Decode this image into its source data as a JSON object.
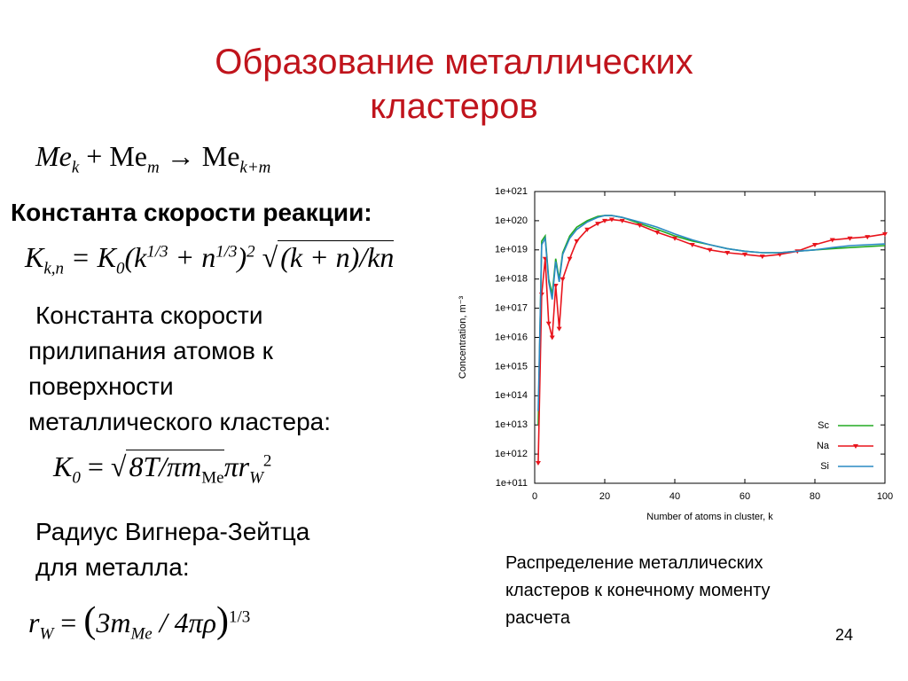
{
  "title": [
    "Образование металлических",
    "кластеров"
  ],
  "formula1": [
    "Me",
    "k",
    " + Me",
    "m",
    " → Me",
    "k+m"
  ],
  "heading": "Константа скорости реакции:",
  "formula2": [
    "K",
    "k,n",
    " = K",
    "0",
    "(k",
    "1/3",
    " + n",
    "1/3",
    ")",
    "2",
    "√",
    "(k + n)/kn"
  ],
  "paragraph": [
    "Константа скорости",
    "прилипания атомов к",
    "поверхности",
    "металлического кластера:"
  ],
  "formula3": [
    "K",
    "0",
    " = ",
    "√",
    "8T/πm",
    "Me",
    "πr",
    "W",
    "2"
  ],
  "radius_text": [
    "Радиус Вигнера-Зейтца",
    "для металла:"
  ],
  "formula4": [
    "r",
    "W",
    " = ",
    "(",
    "3m",
    "Me",
    " / 4πρ",
    ")",
    "1/3"
  ],
  "caption": [
    "Распределение металлических",
    "кластеров к конечному моменту",
    "расчета"
  ],
  "page_number": "24",
  "chart_data": {
    "type": "line",
    "log_y": true,
    "xlabel": "Number of atoms in cluster, k",
    "ylabel": "Concentration, m⁻³",
    "x": [
      1,
      2,
      3,
      4,
      5,
      6,
      7,
      8,
      10,
      12,
      15,
      18,
      20,
      22,
      25,
      30,
      35,
      40,
      45,
      50,
      55,
      60,
      65,
      70,
      75,
      80,
      85,
      90,
      95,
      100
    ],
    "xlim": [
      0,
      100
    ],
    "xticks": [
      0,
      20,
      40,
      60,
      80,
      100
    ],
    "ylim": [
      100000000000.0,
      1e+21
    ],
    "yticks": [
      {
        "value": 100000000000.0,
        "label": "1e+011"
      },
      {
        "value": 1000000000000.0,
        "label": "1e+012"
      },
      {
        "value": 10000000000000.0,
        "label": "1e+013"
      },
      {
        "value": 100000000000000.0,
        "label": "1e+014"
      },
      {
        "value": 1000000000000000.0,
        "label": "1e+015"
      },
      {
        "value": 1e+16,
        "label": "1e+016"
      },
      {
        "value": 1e+17,
        "label": "1e+017"
      },
      {
        "value": 1e+18,
        "label": "1e+018"
      },
      {
        "value": 1e+19,
        "label": "1e+019"
      },
      {
        "value": 1e+20,
        "label": "1e+020"
      },
      {
        "value": 1e+21,
        "label": "1e+021"
      }
    ],
    "legend": "bottom-right",
    "series": [
      {
        "name": "Sc",
        "color": "#22aa22",
        "marker": false,
        "values": [
          10000000000000.0,
          2e+19,
          3e+19,
          1e+18,
          3e+17,
          5e+18,
          1e+18,
          8e+18,
          3e+19,
          6e+19,
          1e+20,
          1.4e+20,
          1.5e+20,
          1.5e+20,
          1.3e+20,
          8e+19,
          5e+19,
          3e+19,
          2e+19,
          1.5e+19,
          1.1e+19,
          9e+18,
          8e+18,
          8e+18,
          9e+18,
          1e+19,
          1.1e+19,
          1.2e+19,
          1.3e+19,
          1.4e+19
        ]
      },
      {
        "name": "Na",
        "color": "#e8141c",
        "marker": true,
        "values": [
          500000000000.0,
          3e+17,
          5e+18,
          3e+16,
          1e+16,
          6e+17,
          2e+16,
          1e+18,
          5e+18,
          2e+19,
          5e+19,
          8e+19,
          1e+20,
          1.1e+20,
          1e+20,
          7e+19,
          4e+19,
          2.5e+19,
          1.5e+19,
          1e+19,
          8e+18,
          7e+18,
          6e+18,
          7e+18,
          9e+18,
          1.5e+19,
          2.2e+19,
          2.5e+19,
          2.8e+19,
          3.5e+19
        ]
      },
      {
        "name": "Si",
        "color": "#2a8ac4",
        "marker": false,
        "values": [
          30000000000000.0,
          1.5e+19,
          2.5e+19,
          8e+17,
          2e+17,
          4e+18,
          8e+17,
          7e+18,
          2.5e+19,
          5e+19,
          9e+19,
          1.3e+20,
          1.5e+20,
          1.5e+20,
          1.3e+20,
          9e+19,
          6e+19,
          3.5e+19,
          2.2e+19,
          1.5e+19,
          1.1e+19,
          9e+18,
          8e+18,
          8e+18,
          9e+18,
          1e+19,
          1.2e+19,
          1.4e+19,
          1.5e+19,
          1.6e+19
        ]
      }
    ]
  }
}
